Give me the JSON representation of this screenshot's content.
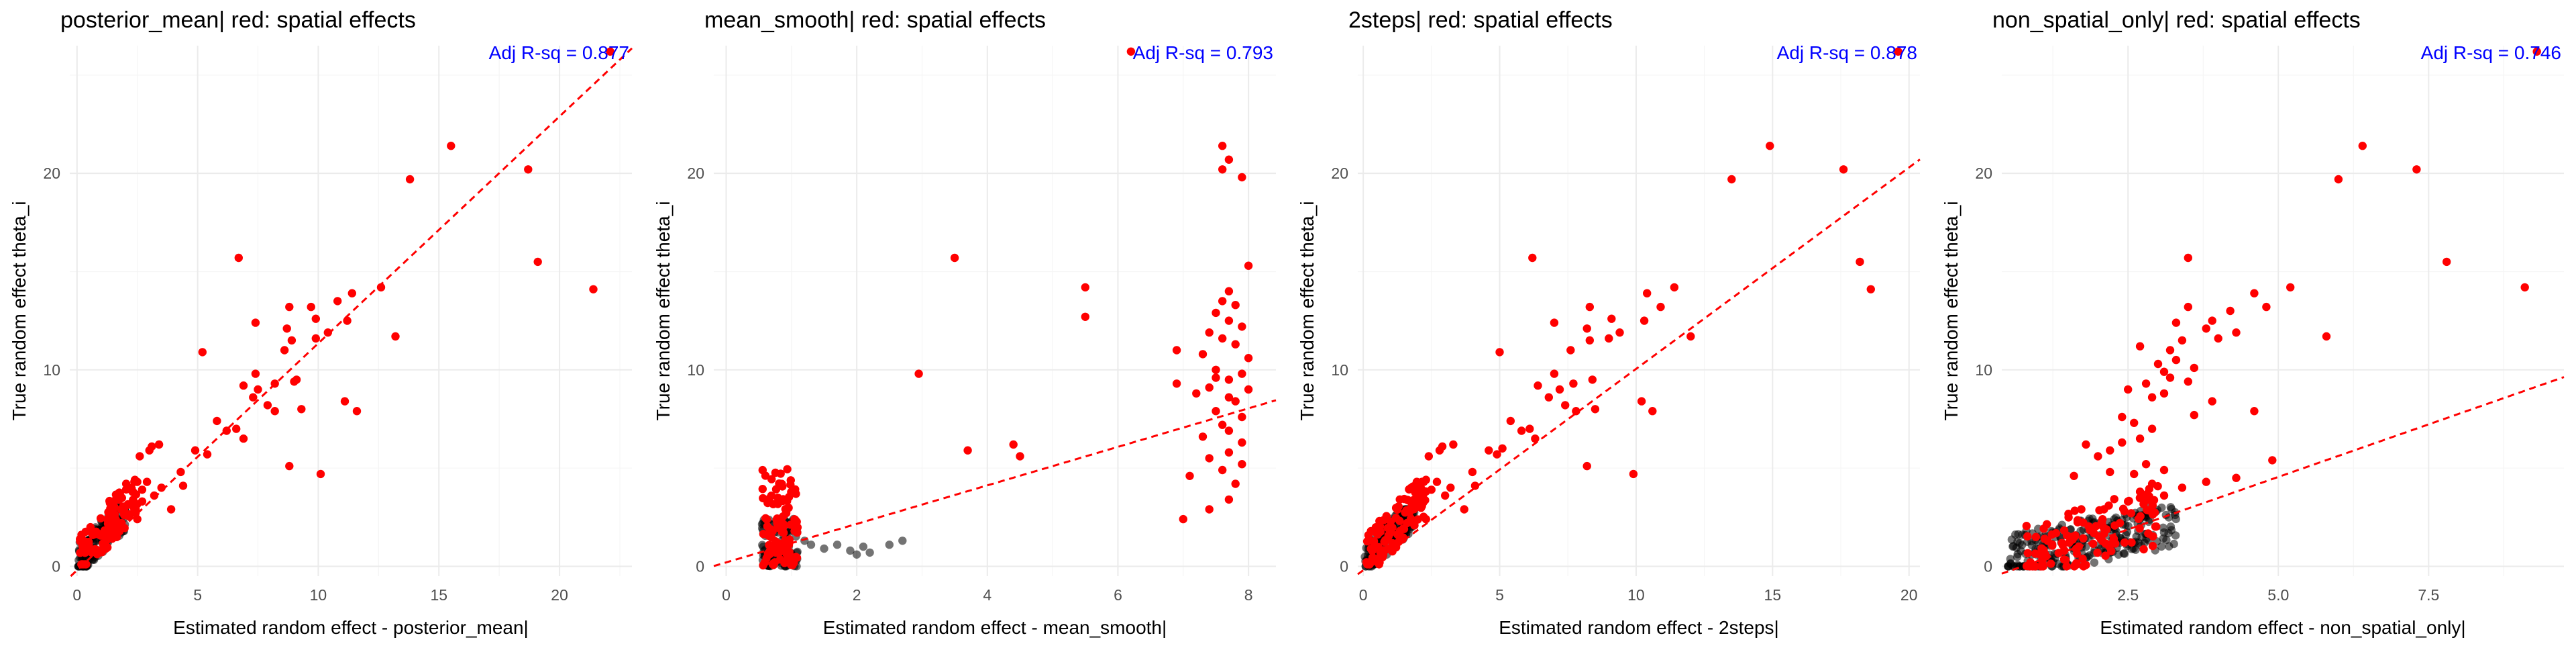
{
  "colors": {
    "black_points": "#000000",
    "red_points": "#ff0000",
    "fit_line": "#ff0000",
    "annotation": "#0000ff"
  },
  "chart_data": [
    {
      "type": "scatter",
      "title": "posterior_mean| red: spatial effects",
      "xlabel": "Estimated random effect - posterior_mean|",
      "ylabel": "True random effect theta_i",
      "annotation": "Adj R-sq = 0.877",
      "xlim": [
        -0.3,
        23
      ],
      "ylim": [
        -0.5,
        26.5
      ],
      "xticks": [
        0,
        5,
        10,
        15,
        20
      ],
      "yticks": [
        0,
        10,
        20
      ],
      "grid": true,
      "legend": "none",
      "fit_line": {
        "intercept": -0.2,
        "slope": 1.155
      },
      "series": [
        {
          "color": "black",
          "cluster": {
            "xmin": 0.05,
            "xmax": 2.0,
            "ymin": 0.0,
            "ymax": 3.0,
            "count": 160,
            "slope": 1.2
          }
        },
        {
          "color": "red",
          "cluster": {
            "xmin": 0.1,
            "xmax": 2.5,
            "ymin": 0.1,
            "ymax": 4.3,
            "count": 110,
            "slope": 1.4
          },
          "points": [
            [
              22.1,
              26.2
            ],
            [
              15.5,
              21.4
            ],
            [
              18.7,
              20.2
            ],
            [
              13.8,
              19.7
            ],
            [
              19.1,
              15.5
            ],
            [
              21.4,
              14.1
            ],
            [
              6.7,
              15.7
            ],
            [
              12.6,
              14.2
            ],
            [
              11.4,
              13.9
            ],
            [
              10.8,
              13.5
            ],
            [
              9.7,
              13.2
            ],
            [
              8.8,
              13.2
            ],
            [
              9.9,
              12.6
            ],
            [
              11.2,
              12.5
            ],
            [
              7.4,
              12.4
            ],
            [
              8.7,
              12.1
            ],
            [
              10.4,
              11.9
            ],
            [
              13.2,
              11.7
            ],
            [
              9.9,
              11.6
            ],
            [
              8.9,
              11.5
            ],
            [
              8.6,
              11.0
            ],
            [
              5.2,
              10.9
            ],
            [
              7.4,
              9.8
            ],
            [
              9.1,
              9.5
            ],
            [
              8.2,
              9.3
            ],
            [
              9.0,
              9.4
            ],
            [
              6.9,
              9.2
            ],
            [
              7.5,
              9.0
            ],
            [
              7.3,
              8.6
            ],
            [
              11.1,
              8.4
            ],
            [
              7.9,
              8.2
            ],
            [
              11.6,
              7.9
            ],
            [
              9.3,
              8.0
            ],
            [
              8.2,
              7.9
            ],
            [
              5.8,
              7.4
            ],
            [
              6.6,
              7.0
            ],
            [
              6.2,
              6.9
            ],
            [
              6.9,
              6.5
            ],
            [
              4.9,
              5.9
            ],
            [
              5.4,
              5.7
            ],
            [
              4.3,
              4.8
            ],
            [
              10.1,
              4.7
            ],
            [
              3.1,
              6.1
            ],
            [
              3.4,
              6.2
            ],
            [
              3.0,
              5.9
            ],
            [
              2.6,
              5.6
            ],
            [
              8.8,
              5.1
            ],
            [
              2.4,
              4.4
            ],
            [
              2.9,
              4.3
            ],
            [
              3.5,
              4.0
            ],
            [
              2.7,
              3.9
            ],
            [
              3.2,
              3.6
            ],
            [
              2.5,
              2.4
            ],
            [
              2.7,
              3.3
            ],
            [
              3.9,
              2.9
            ],
            [
              4.4,
              4.1
            ]
          ]
        }
      ]
    },
    {
      "type": "scatter",
      "title": "mean_smooth| red: spatial effects",
      "xlabel": "Estimated random effect - mean_smooth|",
      "ylabel": "True random effect theta_i",
      "annotation": "Adj R-sq = 0.793",
      "xlim": [
        -0.19,
        8.42
      ],
      "ylim": [
        -0.5,
        26.5
      ],
      "xticks": [
        0,
        2,
        4,
        6,
        8
      ],
      "yticks": [
        0,
        10,
        20
      ],
      "grid": true,
      "legend": "none",
      "fit_line": {
        "intercept": 0.2,
        "slope": 0.98
      },
      "series": [
        {
          "color": "black",
          "cluster": {
            "xmin": 0.55,
            "xmax": 1.1,
            "ymin": 0.0,
            "ymax": 2.5,
            "count": 110,
            "slope": 0
          },
          "points": [
            [
              1.3,
              1.1
            ],
            [
              1.5,
              0.9
            ],
            [
              1.7,
              1.1
            ],
            [
              1.9,
              0.8
            ],
            [
              2.0,
              0.6
            ],
            [
              2.2,
              0.7
            ],
            [
              2.5,
              1.1
            ],
            [
              2.7,
              1.3
            ],
            [
              2.1,
              1.0
            ],
            [
              1.2,
              1.3
            ]
          ]
        },
        {
          "color": "red",
          "cluster": {
            "xmin": 0.55,
            "xmax": 1.1,
            "ymin": 0.0,
            "ymax": 5.0,
            "count": 110,
            "slope": 0
          },
          "points": [
            [
              6.2,
              26.2
            ],
            [
              7.6,
              21.4
            ],
            [
              7.7,
              20.7
            ],
            [
              7.9,
              19.8
            ],
            [
              7.6,
              20.2
            ],
            [
              3.5,
              15.7
            ],
            [
              8.0,
              15.3
            ],
            [
              5.5,
              14.2
            ],
            [
              7.7,
              14.0
            ],
            [
              7.6,
              13.5
            ],
            [
              7.8,
              13.3
            ],
            [
              7.5,
              12.9
            ],
            [
              5.5,
              12.7
            ],
            [
              7.7,
              12.5
            ],
            [
              7.9,
              12.2
            ],
            [
              7.4,
              11.9
            ],
            [
              7.6,
              11.6
            ],
            [
              7.8,
              11.3
            ],
            [
              6.9,
              11.0
            ],
            [
              7.3,
              10.8
            ],
            [
              8.0,
              10.6
            ],
            [
              7.5,
              10.0
            ],
            [
              7.9,
              9.8
            ],
            [
              2.95,
              9.8
            ],
            [
              7.5,
              9.6
            ],
            [
              7.7,
              9.5
            ],
            [
              6.9,
              9.3
            ],
            [
              7.4,
              9.1
            ],
            [
              8.0,
              9.0
            ],
            [
              7.2,
              8.8
            ],
            [
              7.7,
              8.6
            ],
            [
              7.8,
              8.4
            ],
            [
              7.5,
              7.9
            ],
            [
              7.9,
              7.6
            ],
            [
              7.6,
              7.2
            ],
            [
              7.7,
              6.9
            ],
            [
              7.3,
              6.6
            ],
            [
              7.9,
              6.3
            ],
            [
              3.7,
              5.9
            ],
            [
              4.4,
              6.2
            ],
            [
              4.5,
              5.6
            ],
            [
              7.7,
              5.8
            ],
            [
              7.4,
              5.5
            ],
            [
              7.9,
              5.2
            ],
            [
              7.6,
              4.9
            ],
            [
              7.1,
              4.6
            ],
            [
              7.8,
              4.2
            ],
            [
              7.7,
              3.4
            ],
            [
              7.0,
              2.4
            ],
            [
              7.4,
              2.9
            ]
          ]
        }
      ]
    },
    {
      "type": "scatter",
      "title": "2steps| red: spatial effects",
      "xlabel": "Estimated random effect - 2steps|",
      "ylabel": "True random effect theta_i",
      "annotation": "Adj R-sq = 0.878",
      "xlim": [
        -0.2,
        20.4
      ],
      "ylim": [
        -0.5,
        26.5
      ],
      "xticks": [
        0,
        5,
        10,
        15,
        20
      ],
      "yticks": [
        0,
        10,
        20
      ],
      "grid": true,
      "legend": "none",
      "fit_line": {
        "intercept": -0.2,
        "slope": 1.025
      },
      "series": [
        {
          "color": "black",
          "cluster": {
            "xmin": 0.05,
            "xmax": 1.9,
            "ymin": 0.0,
            "ymax": 2.9,
            "count": 160,
            "slope": 1.3
          }
        },
        {
          "color": "red",
          "cluster": {
            "xmin": 0.1,
            "xmax": 2.3,
            "ymin": 0.1,
            "ymax": 4.3,
            "count": 110,
            "slope": 1.5
          },
          "points": [
            [
              19.6,
              26.2
            ],
            [
              14.9,
              21.4
            ],
            [
              17.6,
              20.2
            ],
            [
              13.5,
              19.7
            ],
            [
              18.2,
              15.5
            ],
            [
              18.6,
              14.1
            ],
            [
              6.2,
              15.7
            ],
            [
              11.4,
              14.2
            ],
            [
              10.4,
              13.9
            ],
            [
              10.9,
              13.2
            ],
            [
              8.3,
              13.2
            ],
            [
              9.1,
              12.6
            ],
            [
              10.3,
              12.5
            ],
            [
              7.0,
              12.4
            ],
            [
              8.2,
              12.1
            ],
            [
              9.4,
              11.9
            ],
            [
              12.0,
              11.7
            ],
            [
              9.0,
              11.6
            ],
            [
              8.3,
              11.5
            ],
            [
              7.6,
              11.0
            ],
            [
              5.0,
              10.9
            ],
            [
              7.0,
              9.8
            ],
            [
              8.4,
              9.5
            ],
            [
              7.7,
              9.3
            ],
            [
              6.4,
              9.2
            ],
            [
              7.2,
              9.0
            ],
            [
              6.8,
              8.6
            ],
            [
              10.2,
              8.4
            ],
            [
              7.4,
              8.2
            ],
            [
              10.6,
              7.9
            ],
            [
              8.5,
              8.0
            ],
            [
              7.8,
              7.9
            ],
            [
              5.4,
              7.4
            ],
            [
              6.1,
              7.0
            ],
            [
              5.8,
              6.9
            ],
            [
              6.3,
              6.5
            ],
            [
              4.6,
              5.9
            ],
            [
              4.9,
              5.7
            ],
            [
              4.0,
              4.8
            ],
            [
              9.9,
              4.7
            ],
            [
              2.9,
              6.1
            ],
            [
              3.3,
              6.2
            ],
            [
              2.8,
              5.9
            ],
            [
              2.4,
              5.6
            ],
            [
              8.2,
              5.1
            ],
            [
              2.3,
              4.4
            ],
            [
              2.7,
              4.3
            ],
            [
              3.2,
              4.0
            ],
            [
              2.5,
              3.9
            ],
            [
              3.0,
              3.6
            ],
            [
              2.3,
              2.4
            ],
            [
              3.7,
              2.9
            ],
            [
              4.1,
              4.1
            ],
            [
              5.1,
              6.0
            ]
          ]
        }
      ]
    },
    {
      "type": "scatter",
      "title": "non_spatial_only| red: spatial effects",
      "xlabel": "Estimated random effect - non_spatial_only|",
      "ylabel": "True random effect theta_i",
      "annotation": "Adj R-sq = 0.746",
      "xlim": [
        0.4,
        9.75
      ],
      "ylim": [
        -0.5,
        26.5
      ],
      "xticks": [
        2.5,
        5.0,
        7.5
      ],
      "xticklabels": [
        "2.5",
        "5.0",
        "7.5"
      ],
      "yticks": [
        0,
        10,
        20
      ],
      "grid": true,
      "legend": "none",
      "fit_line": {
        "intercept": -0.8,
        "slope": 1.07
      },
      "series": [
        {
          "color": "black",
          "cluster": {
            "xmin": 0.5,
            "xmax": 3.3,
            "ymin": 0.0,
            "ymax": 4.2,
            "count": 240,
            "slope": 0.6
          }
        },
        {
          "color": "red",
          "cluster": {
            "xmin": 0.8,
            "xmax": 3.0,
            "ymin": 0.0,
            "ymax": 5.5,
            "count": 120,
            "slope": 0.9
          },
          "points": [
            [
              9.3,
              26.2
            ],
            [
              6.4,
              21.4
            ],
            [
              7.3,
              20.2
            ],
            [
              6.0,
              19.7
            ],
            [
              7.8,
              15.5
            ],
            [
              9.1,
              14.2
            ],
            [
              3.5,
              15.7
            ],
            [
              5.2,
              14.2
            ],
            [
              4.6,
              13.9
            ],
            [
              4.8,
              13.2
            ],
            [
              3.5,
              13.2
            ],
            [
              4.2,
              13.0
            ],
            [
              3.9,
              12.5
            ],
            [
              3.3,
              12.4
            ],
            [
              3.8,
              12.1
            ],
            [
              4.3,
              11.9
            ],
            [
              5.8,
              11.7
            ],
            [
              4.0,
              11.6
            ],
            [
              3.4,
              11.5
            ],
            [
              3.2,
              11.0
            ],
            [
              2.7,
              11.2
            ],
            [
              3.3,
              10.5
            ],
            [
              3.0,
              10.3
            ],
            [
              3.6,
              10.1
            ],
            [
              3.1,
              9.9
            ],
            [
              3.2,
              9.6
            ],
            [
              3.5,
              9.4
            ],
            [
              2.8,
              9.3
            ],
            [
              2.5,
              9.0
            ],
            [
              3.1,
              8.8
            ],
            [
              2.9,
              8.6
            ],
            [
              3.9,
              8.4
            ],
            [
              4.6,
              7.9
            ],
            [
              3.6,
              7.7
            ],
            [
              2.4,
              7.6
            ],
            [
              2.6,
              7.3
            ],
            [
              2.9,
              7.0
            ],
            [
              2.7,
              6.5
            ],
            [
              2.4,
              6.3
            ],
            [
              1.8,
              6.2
            ],
            [
              2.2,
              5.9
            ],
            [
              2.0,
              5.6
            ],
            [
              4.9,
              5.4
            ],
            [
              2.8,
              5.2
            ],
            [
              3.1,
              4.9
            ],
            [
              2.2,
              4.8
            ],
            [
              2.6,
              4.7
            ],
            [
              3.8,
              4.3
            ],
            [
              4.3,
              4.5
            ],
            [
              1.6,
              4.6
            ],
            [
              2.9,
              4.2
            ],
            [
              3.4,
              4.0
            ],
            [
              2.7,
              3.8
            ],
            [
              3.1,
              3.6
            ],
            [
              2.5,
              3.3
            ],
            [
              2.1,
              2.9
            ]
          ]
        }
      ]
    }
  ]
}
